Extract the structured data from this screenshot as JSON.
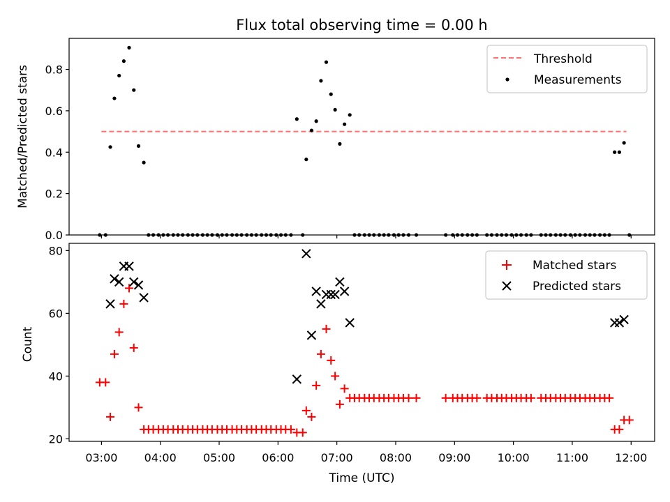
{
  "chart_data": [
    {
      "type": "scatter",
      "title": "Flux total observing time = 0.00 h",
      "ylabel": "Matched/Predicted stars",
      "xlim": [
        2.45,
        12.4
      ],
      "ylim": [
        0,
        0.95
      ],
      "yticks": [
        0.0,
        0.2,
        0.4,
        0.6,
        0.8
      ],
      "ytick_labels": [
        "0.0",
        "0.2",
        "0.4",
        "0.6",
        "0.8"
      ],
      "threshold": {
        "name": "Threshold",
        "value": 0.5,
        "x_range": [
          3.0,
          11.92
        ],
        "color": "#ff7070",
        "style": "dashed"
      },
      "legend_position": "top-right",
      "series": [
        {
          "name": "Measurements",
          "color": "#000000",
          "marker": "dot",
          "points": [
            [
              2.97,
              0
            ],
            [
              3.07,
              0
            ],
            [
              3.15,
              0.425
            ],
            [
              3.22,
              0.66
            ],
            [
              3.3,
              0.77
            ],
            [
              3.38,
              0.84
            ],
            [
              3.47,
              0.905
            ],
            [
              3.55,
              0.7
            ],
            [
              3.63,
              0.43
            ],
            [
              3.72,
              0.35
            ],
            [
              3.8,
              0
            ],
            [
              3.88,
              0
            ],
            [
              3.97,
              0
            ],
            [
              4.05,
              0
            ],
            [
              4.13,
              0
            ],
            [
              4.22,
              0
            ],
            [
              4.3,
              0
            ],
            [
              4.38,
              0
            ],
            [
              4.47,
              0
            ],
            [
              4.55,
              0
            ],
            [
              4.63,
              0
            ],
            [
              4.72,
              0
            ],
            [
              4.8,
              0
            ],
            [
              4.88,
              0
            ],
            [
              4.97,
              0
            ],
            [
              5.05,
              0
            ],
            [
              5.13,
              0
            ],
            [
              5.22,
              0
            ],
            [
              5.3,
              0
            ],
            [
              5.38,
              0
            ],
            [
              5.47,
              0
            ],
            [
              5.55,
              0
            ],
            [
              5.63,
              0
            ],
            [
              5.72,
              0
            ],
            [
              5.8,
              0
            ],
            [
              5.88,
              0
            ],
            [
              5.97,
              0
            ],
            [
              6.05,
              0
            ],
            [
              6.13,
              0
            ],
            [
              6.22,
              0
            ],
            [
              6.32,
              0.56
            ],
            [
              6.42,
              0
            ],
            [
              6.48,
              0.365
            ],
            [
              6.57,
              0.505
            ],
            [
              6.65,
              0.55
            ],
            [
              6.73,
              0.745
            ],
            [
              6.82,
              0.835
            ],
            [
              6.9,
              0.68
            ],
            [
              6.97,
              0.605
            ],
            [
              7.05,
              0.44
            ],
            [
              7.13,
              0.535
            ],
            [
              7.22,
              0.58
            ],
            [
              7.3,
              0
            ],
            [
              7.38,
              0
            ],
            [
              7.47,
              0
            ],
            [
              7.55,
              0
            ],
            [
              7.63,
              0
            ],
            [
              7.72,
              0
            ],
            [
              7.8,
              0
            ],
            [
              7.88,
              0
            ],
            [
              7.97,
              0
            ],
            [
              8.05,
              0
            ],
            [
              8.13,
              0
            ],
            [
              8.22,
              0
            ],
            [
              8.35,
              0
            ],
            [
              8.85,
              0
            ],
            [
              8.97,
              0
            ],
            [
              9.05,
              0
            ],
            [
              9.13,
              0
            ],
            [
              9.22,
              0
            ],
            [
              9.3,
              0
            ],
            [
              9.38,
              0
            ],
            [
              9.55,
              0
            ],
            [
              9.63,
              0
            ],
            [
              9.72,
              0
            ],
            [
              9.8,
              0
            ],
            [
              9.88,
              0
            ],
            [
              9.97,
              0
            ],
            [
              10.05,
              0
            ],
            [
              10.13,
              0
            ],
            [
              10.22,
              0
            ],
            [
              10.3,
              0
            ],
            [
              10.47,
              0
            ],
            [
              10.55,
              0
            ],
            [
              10.63,
              0
            ],
            [
              10.72,
              0
            ],
            [
              10.8,
              0
            ],
            [
              10.88,
              0
            ],
            [
              10.97,
              0
            ],
            [
              11.05,
              0
            ],
            [
              11.13,
              0
            ],
            [
              11.22,
              0
            ],
            [
              11.3,
              0
            ],
            [
              11.38,
              0
            ],
            [
              11.47,
              0
            ],
            [
              11.55,
              0
            ],
            [
              11.63,
              0
            ],
            [
              11.72,
              0.4
            ],
            [
              11.8,
              0.4
            ],
            [
              11.88,
              0.445
            ],
            [
              11.97,
              0
            ]
          ]
        }
      ]
    },
    {
      "type": "scatter",
      "xlabel": "Time (UTC)",
      "ylabel": "Count",
      "xlim": [
        2.45,
        12.4
      ],
      "ylim": [
        19.2,
        82.3
      ],
      "xticks": [
        3,
        4,
        5,
        6,
        7,
        8,
        9,
        10,
        11,
        12
      ],
      "xtick_labels": [
        "03:00",
        "04:00",
        "05:00",
        "06:00",
        "07:00",
        "08:00",
        "09:00",
        "10:00",
        "11:00",
        "12:00"
      ],
      "yticks": [
        20,
        40,
        60,
        80
      ],
      "ytick_labels": [
        "20",
        "40",
        "60",
        "80"
      ],
      "legend_position": "top-right",
      "series": [
        {
          "name": "Matched stars",
          "color": "#ff0000",
          "marker": "plus",
          "points": [
            [
              2.97,
              38
            ],
            [
              3.07,
              38
            ],
            [
              3.15,
              27
            ],
            [
              3.22,
              47
            ],
            [
              3.3,
              54
            ],
            [
              3.38,
              63
            ],
            [
              3.47,
              68
            ],
            [
              3.55,
              49
            ],
            [
              3.63,
              30
            ],
            [
              3.72,
              23
            ],
            [
              3.8,
              23
            ],
            [
              3.88,
              23
            ],
            [
              3.97,
              23
            ],
            [
              4.05,
              23
            ],
            [
              4.13,
              23
            ],
            [
              4.22,
              23
            ],
            [
              4.3,
              23
            ],
            [
              4.38,
              23
            ],
            [
              4.47,
              23
            ],
            [
              4.55,
              23
            ],
            [
              4.63,
              23
            ],
            [
              4.72,
              23
            ],
            [
              4.8,
              23
            ],
            [
              4.88,
              23
            ],
            [
              4.97,
              23
            ],
            [
              5.05,
              23
            ],
            [
              5.13,
              23
            ],
            [
              5.22,
              23
            ],
            [
              5.3,
              23
            ],
            [
              5.38,
              23
            ],
            [
              5.47,
              23
            ],
            [
              5.55,
              23
            ],
            [
              5.63,
              23
            ],
            [
              5.72,
              23
            ],
            [
              5.8,
              23
            ],
            [
              5.88,
              23
            ],
            [
              5.97,
              23
            ],
            [
              6.05,
              23
            ],
            [
              6.13,
              23
            ],
            [
              6.22,
              23
            ],
            [
              6.32,
              22
            ],
            [
              6.42,
              22
            ],
            [
              6.48,
              29
            ],
            [
              6.57,
              27
            ],
            [
              6.65,
              37
            ],
            [
              6.73,
              47
            ],
            [
              6.82,
              55
            ],
            [
              6.9,
              45
            ],
            [
              6.97,
              40
            ],
            [
              7.05,
              31
            ],
            [
              7.13,
              36
            ],
            [
              7.22,
              33
            ],
            [
              7.3,
              33
            ],
            [
              7.38,
              33
            ],
            [
              7.47,
              33
            ],
            [
              7.55,
              33
            ],
            [
              7.63,
              33
            ],
            [
              7.72,
              33
            ],
            [
              7.8,
              33
            ],
            [
              7.88,
              33
            ],
            [
              7.97,
              33
            ],
            [
              8.05,
              33
            ],
            [
              8.13,
              33
            ],
            [
              8.22,
              33
            ],
            [
              8.35,
              33
            ],
            [
              8.85,
              33
            ],
            [
              8.97,
              33
            ],
            [
              9.05,
              33
            ],
            [
              9.13,
              33
            ],
            [
              9.22,
              33
            ],
            [
              9.3,
              33
            ],
            [
              9.38,
              33
            ],
            [
              9.55,
              33
            ],
            [
              9.63,
              33
            ],
            [
              9.72,
              33
            ],
            [
              9.8,
              33
            ],
            [
              9.88,
              33
            ],
            [
              9.97,
              33
            ],
            [
              10.05,
              33
            ],
            [
              10.13,
              33
            ],
            [
              10.22,
              33
            ],
            [
              10.3,
              33
            ],
            [
              10.47,
              33
            ],
            [
              10.55,
              33
            ],
            [
              10.63,
              33
            ],
            [
              10.72,
              33
            ],
            [
              10.8,
              33
            ],
            [
              10.88,
              33
            ],
            [
              10.97,
              33
            ],
            [
              11.05,
              33
            ],
            [
              11.13,
              33
            ],
            [
              11.22,
              33
            ],
            [
              11.3,
              33
            ],
            [
              11.38,
              33
            ],
            [
              11.47,
              33
            ],
            [
              11.55,
              33
            ],
            [
              11.63,
              33
            ],
            [
              11.72,
              23
            ],
            [
              11.8,
              23
            ],
            [
              11.88,
              26
            ],
            [
              11.97,
              26
            ]
          ]
        },
        {
          "name": "Predicted stars",
          "color": "#000000",
          "marker": "x",
          "points": [
            [
              3.15,
              63
            ],
            [
              3.22,
              71
            ],
            [
              3.3,
              70
            ],
            [
              3.38,
              75
            ],
            [
              3.47,
              75
            ],
            [
              3.55,
              70
            ],
            [
              3.63,
              69
            ],
            [
              3.72,
              65
            ],
            [
              6.32,
              39
            ],
            [
              6.48,
              79
            ],
            [
              6.57,
              53
            ],
            [
              6.65,
              67
            ],
            [
              6.73,
              63
            ],
            [
              6.82,
              66
            ],
            [
              6.9,
              66
            ],
            [
              6.97,
              66
            ],
            [
              7.05,
              70
            ],
            [
              7.13,
              67
            ],
            [
              7.22,
              57
            ],
            [
              11.72,
              57
            ],
            [
              11.8,
              57
            ],
            [
              11.88,
              58
            ]
          ]
        }
      ]
    }
  ]
}
